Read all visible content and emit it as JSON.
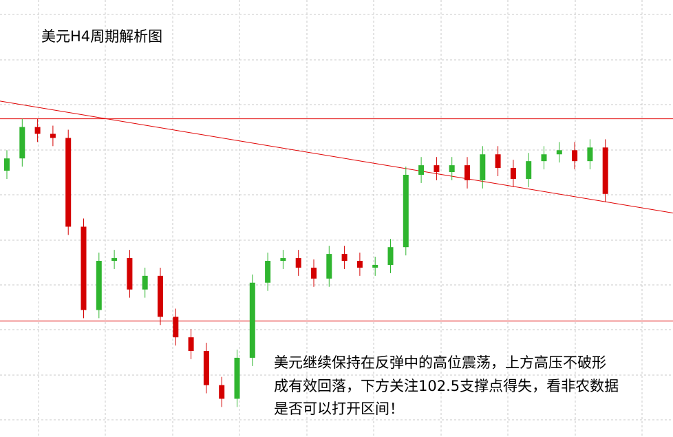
{
  "chart_data": {
    "type": "candlestick",
    "title": "美元H4周期解析图",
    "annotation": [
      "美元继续保持在反弹中的高位震荡，上方高压不破形",
      "成有效回落，下方关注102.5支撑点得失，看非农数据",
      "是否可以打开区间！"
    ],
    "ylim": [
      101.65,
      104.85
    ],
    "up_color": "#2fb52f",
    "down_color": "#d40000",
    "line_color": "#e00000",
    "open": [
      103.6,
      103.69,
      103.92,
      103.87,
      103.84,
      103.19,
      102.58,
      102.94,
      102.96,
      102.73,
      102.83,
      102.53,
      102.38,
      102.28,
      102.03,
      101.93,
      102.23,
      102.78,
      102.94,
      102.96,
      102.89,
      102.81,
      102.99,
      102.94,
      102.89,
      102.91,
      103.04,
      103.57,
      103.64,
      103.59,
      103.64,
      103.53,
      103.72,
      103.62,
      103.54,
      103.67,
      103.72,
      103.75,
      103.67,
      103.77
    ],
    "high": [
      103.75,
      103.98,
      103.98,
      103.93,
      103.9,
      103.25,
      103.0,
      103.02,
      103.02,
      102.89,
      102.89,
      102.59,
      102.44,
      102.34,
      102.09,
      102.29,
      102.84,
      103.0,
      103.02,
      103.02,
      102.95,
      103.05,
      103.05,
      103.0,
      102.97,
      103.1,
      103.63,
      103.7,
      103.7,
      103.7,
      103.7,
      103.78,
      103.78,
      103.68,
      103.73,
      103.78,
      103.81,
      103.81,
      103.83,
      103.83
    ],
    "low": [
      103.54,
      103.63,
      103.81,
      103.78,
      103.13,
      102.52,
      102.52,
      102.88,
      102.67,
      102.67,
      102.47,
      102.32,
      102.22,
      101.97,
      101.87,
      101.87,
      102.17,
      102.72,
      102.88,
      102.83,
      102.75,
      102.75,
      102.88,
      102.83,
      102.83,
      102.85,
      102.98,
      103.51,
      103.53,
      103.53,
      103.47,
      103.47,
      103.56,
      103.48,
      103.48,
      103.61,
      103.66,
      103.61,
      103.61,
      103.37
    ],
    "close": [
      103.69,
      103.92,
      103.87,
      103.84,
      103.19,
      102.58,
      102.94,
      102.96,
      102.73,
      102.83,
      102.53,
      102.38,
      102.28,
      102.03,
      101.93,
      102.23,
      102.78,
      102.94,
      102.96,
      102.89,
      102.81,
      102.99,
      102.94,
      102.89,
      102.91,
      103.04,
      103.57,
      103.64,
      103.59,
      103.64,
      103.53,
      103.72,
      103.62,
      103.54,
      103.67,
      103.72,
      103.75,
      103.67,
      103.77,
      103.43
    ],
    "hlines": [
      103.98,
      102.5
    ],
    "trendline": [
      104.11,
      103.29
    ]
  }
}
